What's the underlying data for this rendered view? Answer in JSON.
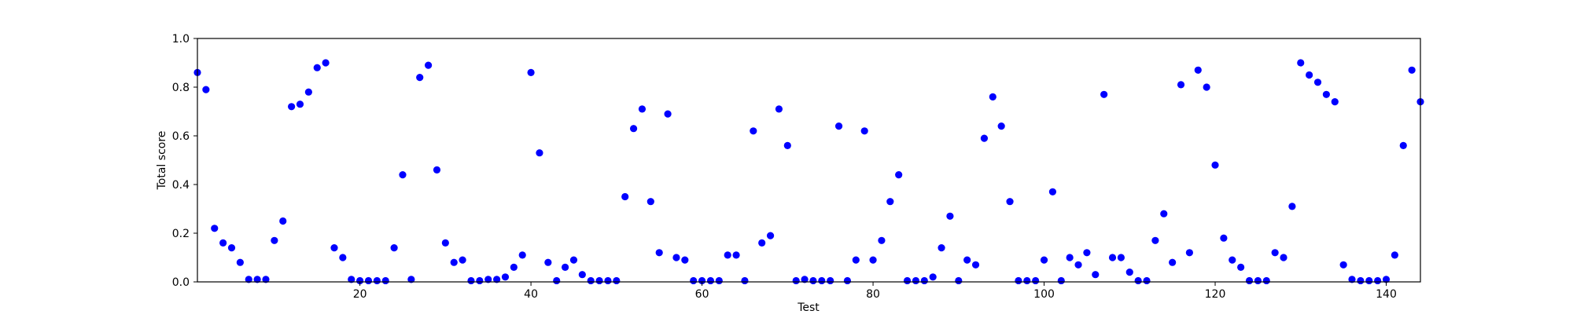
{
  "chart_data": {
    "type": "scatter",
    "title": "",
    "xlabel": "Test",
    "ylabel": "Total score",
    "xlim": [
      1,
      144
    ],
    "ylim": [
      0.0,
      1.0
    ],
    "x_ticks": [
      20,
      40,
      60,
      80,
      100,
      120,
      140
    ],
    "y_ticks": [
      0.0,
      0.2,
      0.4,
      0.6,
      0.8,
      1.0
    ],
    "x_tick_labels": [
      "20",
      "40",
      "60",
      "80",
      "100",
      "120",
      "140"
    ],
    "y_tick_labels": [
      "0.0",
      "0.2",
      "0.4",
      "0.6",
      "0.8",
      "1.0"
    ],
    "grid": false,
    "legend": "none",
    "point_color": "#0000ff",
    "x": [
      1,
      2,
      3,
      4,
      5,
      6,
      7,
      8,
      9,
      10,
      11,
      12,
      13,
      14,
      15,
      16,
      17,
      18,
      19,
      20,
      21,
      22,
      23,
      24,
      25,
      26,
      27,
      28,
      29,
      30,
      31,
      32,
      33,
      34,
      35,
      36,
      37,
      38,
      39,
      40,
      41,
      42,
      43,
      44,
      45,
      46,
      47,
      48,
      49,
      50,
      51,
      52,
      53,
      54,
      55,
      56,
      57,
      58,
      59,
      60,
      61,
      62,
      63,
      64,
      65,
      66,
      67,
      68,
      69,
      70,
      71,
      72,
      73,
      74,
      75,
      76,
      77,
      78,
      79,
      80,
      81,
      82,
      83,
      84,
      85,
      86,
      87,
      88,
      89,
      90,
      91,
      92,
      93,
      94,
      95,
      96,
      97,
      98,
      99,
      100,
      101,
      102,
      103,
      104,
      105,
      106,
      107,
      108,
      109,
      110,
      111,
      112,
      113,
      114,
      115,
      116,
      117,
      118,
      119,
      120,
      121,
      122,
      123,
      124,
      125,
      126,
      127,
      128,
      129,
      130,
      131,
      132,
      133,
      134,
      135,
      136,
      137,
      138,
      139,
      140,
      141,
      142,
      143,
      144
    ],
    "y": [
      0.86,
      0.79,
      0.22,
      0.16,
      0.14,
      0.08,
      0.01,
      0.01,
      0.01,
      0.17,
      0.25,
      0.72,
      0.73,
      0.78,
      0.88,
      0.9,
      0.14,
      0.1,
      0.01,
      0.005,
      0.005,
      0.005,
      0.005,
      0.14,
      0.44,
      0.01,
      0.84,
      0.89,
      0.46,
      0.16,
      0.08,
      0.09,
      0.005,
      0.005,
      0.01,
      0.01,
      0.02,
      0.06,
      0.11,
      0.86,
      0.53,
      0.08,
      0.005,
      0.06,
      0.09,
      0.03,
      0.005,
      0.005,
      0.005,
      0.005,
      0.35,
      0.63,
      0.71,
      0.33,
      0.12,
      0.69,
      0.1,
      0.09,
      0.005,
      0.005,
      0.005,
      0.005,
      0.11,
      0.11,
      0.005,
      0.62,
      0.16,
      0.19,
      0.71,
      0.56,
      0.005,
      0.01,
      0.005,
      0.005,
      0.005,
      0.64,
      0.005,
      0.09,
      0.62,
      0.09,
      0.17,
      0.33,
      0.44,
      0.005,
      0.005,
      0.005,
      0.02,
      0.14,
      0.27,
      0.005,
      0.09,
      0.07,
      0.59,
      0.76,
      0.64,
      0.33,
      0.005,
      0.005,
      0.005,
      0.09,
      0.37,
      0.005,
      0.1,
      0.07,
      0.12,
      0.03,
      0.77,
      0.1,
      0.1,
      0.04,
      0.005,
      0.005,
      0.17,
      0.28,
      0.08,
      0.81,
      0.12,
      0.87,
      0.8,
      0.48,
      0.18,
      0.09,
      0.06,
      0.005,
      0.005,
      0.005,
      0.12,
      0.1,
      0.31,
      0.9,
      0.85,
      0.82,
      0.77,
      0.74,
      0.07,
      0.01,
      0.005,
      0.005,
      0.005,
      0.01,
      0.11,
      0.56,
      0.87,
      0.74
    ]
  }
}
